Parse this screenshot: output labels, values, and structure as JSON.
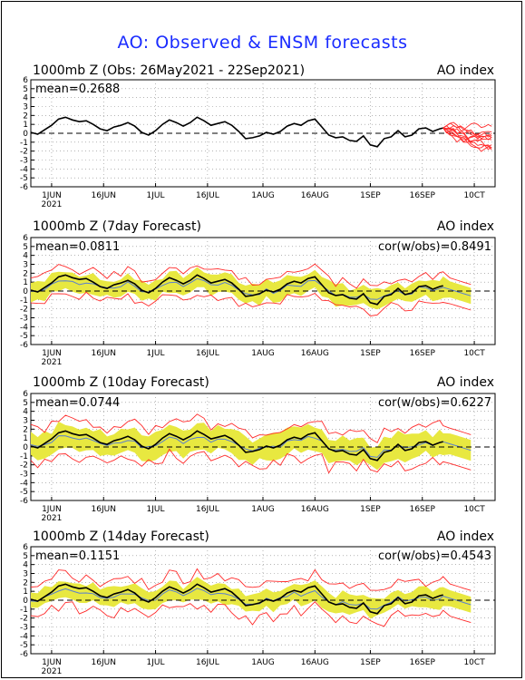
{
  "title": "AO: Observed & ENSM forecasts",
  "colors": {
    "title": "#1a2cff",
    "observed": "#000000",
    "ensemble_member": "#ff2a2a",
    "spread": "#e8e840",
    "ens_mean": "#5a7fd0"
  },
  "xaxis": {
    "ticks": [
      {
        "day": 6,
        "label": "1JUN",
        "sub": "2021"
      },
      {
        "day": 21,
        "label": "16JUN",
        "sub": ""
      },
      {
        "day": 36,
        "label": "1JUL",
        "sub": ""
      },
      {
        "day": 51,
        "label": "16JUL",
        "sub": ""
      },
      {
        "day": 67,
        "label": "1AUG",
        "sub": ""
      },
      {
        "day": 82,
        "label": "16AUG",
        "sub": ""
      },
      {
        "day": 98,
        "label": "1SEP",
        "sub": ""
      },
      {
        "day": 113,
        "label": "16SEP",
        "sub": ""
      },
      {
        "day": 128,
        "label": "10CT",
        "sub": ""
      }
    ],
    "range_days": [
      0,
      134
    ]
  },
  "yaxis": {
    "range": [
      -6,
      6
    ],
    "ticks": [
      "6",
      "5",
      "4",
      "3",
      "2",
      "1",
      "0",
      "-1",
      "-2",
      "-3",
      "-4",
      "-5",
      "-6"
    ]
  },
  "chart_data": [
    {
      "type": "line",
      "title": "1000mb Z (Obs: 26May2021 - 22Sep2021)",
      "right_label": "AO index",
      "mean_label": "mean=0.2688",
      "cor_label": "",
      "series": [
        {
          "role": "observed",
          "x": [
            0,
            2,
            4,
            6,
            8,
            10,
            12,
            14,
            16,
            18,
            20,
            22,
            24,
            26,
            28,
            30,
            32,
            34,
            36,
            38,
            40,
            42,
            44,
            46,
            48,
            50,
            52,
            54,
            56,
            58,
            60,
            62,
            64,
            66,
            68,
            70,
            72,
            74,
            76,
            78,
            80,
            82,
            84,
            86,
            88,
            90,
            92,
            94,
            96,
            98,
            100,
            102,
            104,
            106,
            108,
            110,
            112,
            114,
            116,
            118,
            119
          ],
          "y": [
            0.1,
            -0.1,
            0.4,
            0.9,
            1.6,
            1.8,
            1.5,
            1.3,
            1.4,
            1.0,
            0.5,
            0.3,
            0.7,
            0.9,
            1.2,
            0.8,
            0.1,
            -0.2,
            0.3,
            1.0,
            1.5,
            1.2,
            0.8,
            1.2,
            1.8,
            1.4,
            0.9,
            1.1,
            1.3,
            0.9,
            0.2,
            -0.6,
            -0.5,
            -0.3,
            0.1,
            -0.1,
            0.2,
            0.8,
            1.1,
            0.9,
            1.4,
            1.6,
            0.7,
            -0.2,
            -0.5,
            -0.4,
            -0.8,
            -0.9,
            -0.3,
            -1.3,
            -1.5,
            -0.6,
            -0.4,
            0.3,
            -0.4,
            -0.2,
            0.5,
            0.6,
            0.2,
            0.5,
            0.6
          ]
        }
      ],
      "forecast_members": true
    },
    {
      "type": "line",
      "title": "1000mb Z (7day Forecast)",
      "right_label": "AO index",
      "mean_label": "mean=0.0811",
      "cor_label": "cor(w/obs)=0.8491",
      "series": [
        {
          "role": "observed",
          "x": [
            0,
            2,
            4,
            6,
            8,
            10,
            12,
            14,
            16,
            18,
            20,
            22,
            24,
            26,
            28,
            30,
            32,
            34,
            36,
            38,
            40,
            42,
            44,
            46,
            48,
            50,
            52,
            54,
            56,
            58,
            60,
            62,
            64,
            66,
            68,
            70,
            72,
            74,
            76,
            78,
            80,
            82,
            84,
            86,
            88,
            90,
            92,
            94,
            96,
            98,
            100,
            102,
            104,
            106,
            108,
            110,
            112,
            114,
            116,
            118,
            119
          ],
          "y": [
            0.1,
            -0.1,
            0.4,
            0.9,
            1.6,
            1.8,
            1.5,
            1.3,
            1.4,
            1.0,
            0.5,
            0.3,
            0.7,
            0.9,
            1.2,
            0.8,
            0.1,
            -0.2,
            0.3,
            1.0,
            1.5,
            1.2,
            0.8,
            1.2,
            1.8,
            1.4,
            0.9,
            1.1,
            1.3,
            0.9,
            0.2,
            -0.6,
            -0.5,
            -0.3,
            0.1,
            -0.1,
            0.2,
            0.8,
            1.1,
            0.9,
            1.4,
            1.6,
            0.7,
            -0.2,
            -0.5,
            -0.4,
            -0.8,
            -0.9,
            -0.3,
            -1.3,
            -1.5,
            -0.6,
            -0.4,
            0.3,
            -0.4,
            -0.2,
            0.5,
            0.6,
            0.2,
            0.5,
            0.6
          ]
        }
      ],
      "spread": 1.0,
      "ext_spread": 1.6
    },
    {
      "type": "line",
      "title": "1000mb Z (10day Forecast)",
      "right_label": "AO index",
      "mean_label": "mean=0.0744",
      "cor_label": "cor(w/obs)=0.6227",
      "series": [
        {
          "role": "observed",
          "x": [
            0,
            2,
            4,
            6,
            8,
            10,
            12,
            14,
            16,
            18,
            20,
            22,
            24,
            26,
            28,
            30,
            32,
            34,
            36,
            38,
            40,
            42,
            44,
            46,
            48,
            50,
            52,
            54,
            56,
            58,
            60,
            62,
            64,
            66,
            68,
            70,
            72,
            74,
            76,
            78,
            80,
            82,
            84,
            86,
            88,
            90,
            92,
            94,
            96,
            98,
            100,
            102,
            104,
            106,
            108,
            110,
            112,
            114,
            116,
            118,
            119
          ],
          "y": [
            0.1,
            -0.1,
            0.4,
            0.9,
            1.6,
            1.8,
            1.5,
            1.3,
            1.4,
            1.0,
            0.5,
            0.3,
            0.7,
            0.9,
            1.2,
            0.8,
            0.1,
            -0.2,
            0.3,
            1.0,
            1.5,
            1.2,
            0.8,
            1.2,
            1.8,
            1.4,
            0.9,
            1.1,
            1.3,
            0.9,
            0.2,
            -0.6,
            -0.5,
            -0.3,
            0.1,
            -0.1,
            0.2,
            0.8,
            1.1,
            0.9,
            1.4,
            1.6,
            0.7,
            -0.2,
            -0.5,
            -0.4,
            -0.8,
            -0.9,
            -0.3,
            -1.3,
            -1.5,
            -0.6,
            -0.4,
            0.3,
            -0.4,
            -0.2,
            0.5,
            0.6,
            0.2,
            0.5,
            0.6
          ]
        }
      ],
      "spread": 1.3,
      "ext_spread": 2.2
    },
    {
      "type": "line",
      "title": "1000mb Z (14day Forecast)",
      "right_label": "AO index",
      "mean_label": "mean=0.1151",
      "cor_label": "cor(w/obs)=0.4543",
      "series": [
        {
          "role": "observed",
          "x": [
            0,
            2,
            4,
            6,
            8,
            10,
            12,
            14,
            16,
            18,
            20,
            22,
            24,
            26,
            28,
            30,
            32,
            34,
            36,
            38,
            40,
            42,
            44,
            46,
            48,
            50,
            52,
            54,
            56,
            58,
            60,
            62,
            64,
            66,
            68,
            70,
            72,
            74,
            76,
            78,
            80,
            82,
            84,
            86,
            88,
            90,
            92,
            94,
            96,
            98,
            100,
            102,
            104,
            106,
            108,
            110,
            112,
            114,
            116,
            118,
            119
          ],
          "y": [
            0.1,
            -0.1,
            0.4,
            0.9,
            1.6,
            1.8,
            1.5,
            1.3,
            1.4,
            1.0,
            0.5,
            0.3,
            0.7,
            0.9,
            1.2,
            0.8,
            0.1,
            -0.2,
            0.3,
            1.0,
            1.5,
            1.2,
            0.8,
            1.2,
            1.8,
            1.4,
            0.9,
            1.1,
            1.3,
            0.9,
            0.2,
            -0.6,
            -0.5,
            -0.3,
            0.1,
            -0.1,
            0.2,
            0.8,
            1.1,
            0.9,
            1.4,
            1.6,
            0.7,
            -0.2,
            -0.5,
            -0.4,
            -0.8,
            -0.9,
            -0.3,
            -1.3,
            -1.5,
            -0.6,
            -0.4,
            0.3,
            -0.4,
            -0.2,
            0.5,
            0.6,
            0.2,
            0.5,
            0.6
          ]
        }
      ],
      "spread": 1.0,
      "ext_spread": 2.0
    }
  ]
}
